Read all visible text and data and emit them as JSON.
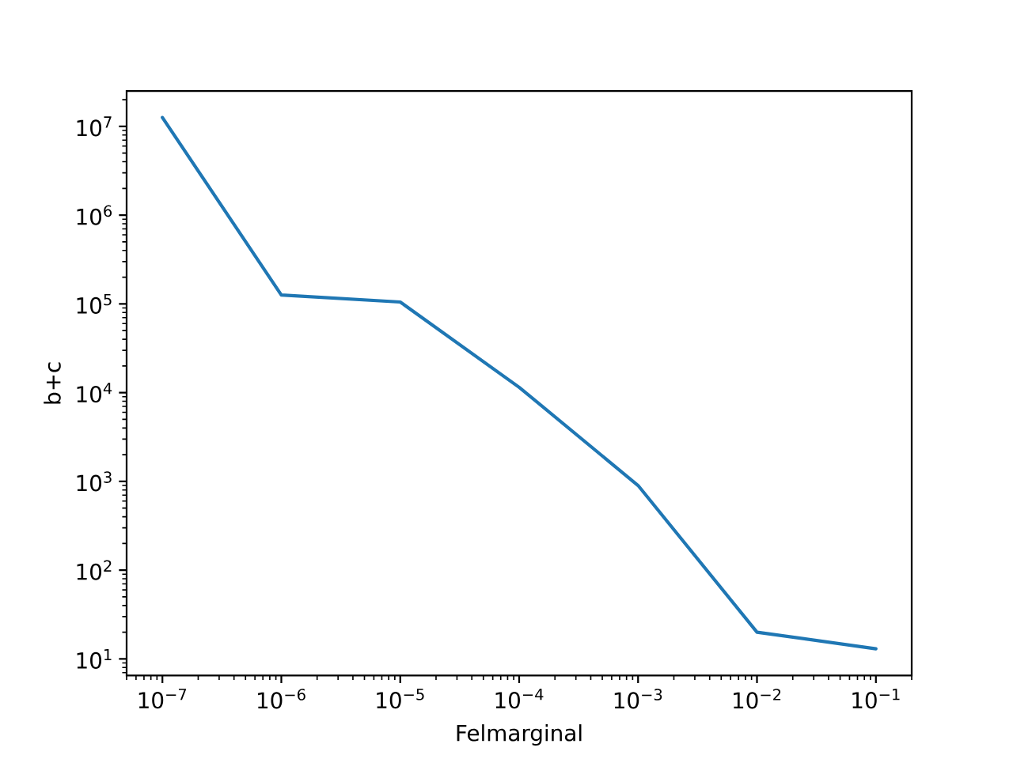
{
  "chart_data": {
    "type": "line",
    "xlabel": "Felmarginal",
    "ylabel": "b+c",
    "x": [
      1e-07,
      1e-06,
      1e-05,
      0.0001,
      0.001,
      0.01,
      0.1
    ],
    "series": [
      {
        "color": "#1f77b4",
        "values": [
          12600000,
          126000,
          105000,
          11500,
          900,
          20,
          13
        ]
      }
    ],
    "log": "xy",
    "marker": "none",
    "line_style": "solid",
    "xlim": [
      5e-08,
      0.2
    ],
    "ylim": [
      6.5,
      25000000
    ],
    "xticks": [
      {
        "value": 1e-07,
        "label": "10$^{−7}$"
      },
      {
        "value": 1e-06,
        "label": "10$^{−6}$"
      },
      {
        "value": 1e-05,
        "label": "10$^{−5}$"
      },
      {
        "value": 0.0001,
        "label": "10$^{−4}$"
      },
      {
        "value": 0.001,
        "label": "10$^{−3}$"
      },
      {
        "value": 0.01,
        "label": "10$^{−2}$"
      },
      {
        "value": 0.1,
        "label": "10$^{−1}$"
      }
    ],
    "yticks": [
      {
        "value": 10,
        "label": "10$^{1}$"
      },
      {
        "value": 100,
        "label": "10$^{2}$"
      },
      {
        "value": 1000,
        "label": "10$^{3}$"
      },
      {
        "value": 10000,
        "label": "10$^{4}$"
      },
      {
        "value": 100000,
        "label": "10$^{5}$"
      },
      {
        "value": 1000000,
        "label": "10$^{6}$"
      },
      {
        "value": 10000000,
        "label": "10$^{7}$"
      }
    ]
  }
}
